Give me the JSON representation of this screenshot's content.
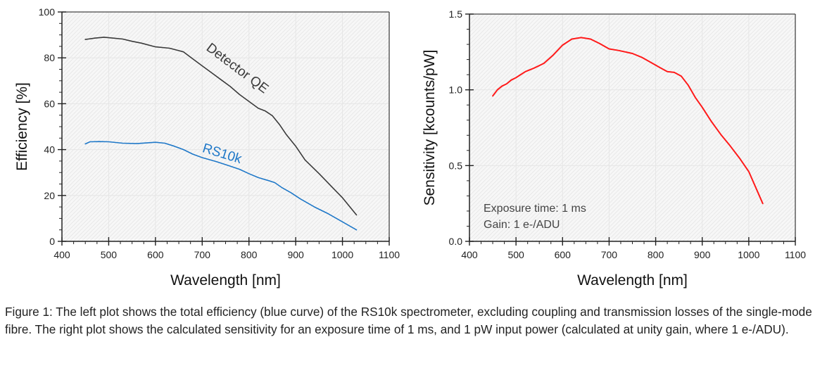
{
  "chart_data": [
    {
      "type": "line",
      "title": "",
      "xlabel": "Wavelength [nm]",
      "ylabel": "Efficiency [%]",
      "xlim": [
        400,
        1100
      ],
      "ylim": [
        0,
        100
      ],
      "xticks": [
        400,
        500,
        600,
        700,
        800,
        900,
        1000,
        1100
      ],
      "yticks": [
        0,
        20,
        40,
        60,
        80,
        100
      ],
      "x_minor_step": 25,
      "y_minor_step": 5,
      "grid": true,
      "legend": "none",
      "series": [
        {
          "name": "Detector QE",
          "color": "#3a3a3a",
          "x": [
            450,
            470,
            490,
            510,
            530,
            550,
            570,
            600,
            630,
            660,
            680,
            700,
            720,
            740,
            760,
            780,
            800,
            820,
            835,
            850,
            865,
            880,
            900,
            920,
            950,
            980,
            1000,
            1030
          ],
          "y": [
            88,
            88.6,
            89,
            88.6,
            88.2,
            87.2,
            86.4,
            84.8,
            84.2,
            82.6,
            79.5,
            76.5,
            73.5,
            70.5,
            67.5,
            64,
            61,
            58,
            56.8,
            54.8,
            51,
            46.5,
            41.5,
            35.5,
            29.5,
            23.2,
            19,
            11.5
          ]
        },
        {
          "name": "RS10k",
          "color": "#1f78c8",
          "x": [
            450,
            460,
            480,
            500,
            530,
            560,
            600,
            620,
            640,
            660,
            680,
            700,
            730,
            760,
            780,
            800,
            820,
            840,
            855,
            870,
            890,
            910,
            940,
            970,
            1000,
            1030
          ],
          "y": [
            42.5,
            43.4,
            43.5,
            43.4,
            42.8,
            42.6,
            43.2,
            42.8,
            41.5,
            40,
            38,
            36.5,
            34.8,
            32.8,
            31.4,
            29.5,
            27.8,
            26.6,
            25.6,
            23.5,
            21.2,
            18.5,
            15,
            12,
            8.5,
            5
          ]
        }
      ],
      "annotations": [
        {
          "text": "Detector QE",
          "x": 770,
          "y": 74,
          "angle": -37,
          "color": "#3a3a3a"
        },
        {
          "text": "RS10k",
          "x": 740,
          "y": 36.5,
          "angle": 17,
          "color": "#1f78c8"
        }
      ]
    },
    {
      "type": "line",
      "title": "",
      "xlabel": "Wavelength [nm]",
      "ylabel": "Sensitivity [kcounts/pW]",
      "xlim": [
        400,
        1100
      ],
      "ylim": [
        0.0,
        1.5
      ],
      "xticks": [
        400,
        500,
        600,
        700,
        800,
        900,
        1000,
        1100
      ],
      "yticks": [
        0.0,
        0.5,
        1.0,
        1.5
      ],
      "x_minor_step": 25,
      "y_minor_step": 0.1,
      "grid": true,
      "legend": "none",
      "series": [
        {
          "name": "Sensitivity",
          "color": "#ff1a1a",
          "x": [
            450,
            455,
            460,
            470,
            480,
            490,
            500,
            520,
            540,
            560,
            580,
            600,
            620,
            640,
            660,
            680,
            700,
            720,
            750,
            770,
            790,
            810,
            825,
            840,
            855,
            870,
            885,
            900,
            920,
            940,
            960,
            980,
            1000,
            1030
          ],
          "y": [
            0.96,
            0.98,
            1.0,
            1.025,
            1.04,
            1.065,
            1.08,
            1.12,
            1.145,
            1.175,
            1.23,
            1.295,
            1.335,
            1.345,
            1.335,
            1.305,
            1.27,
            1.26,
            1.24,
            1.215,
            1.18,
            1.145,
            1.12,
            1.115,
            1.09,
            1.03,
            0.95,
            0.885,
            0.79,
            0.705,
            0.63,
            0.55,
            0.46,
            0.25
          ]
        }
      ],
      "info_text": [
        "Exposure time: 1 ms",
        "Gain: 1 e-/ADU"
      ]
    }
  ],
  "caption": "Figure 1: The left plot shows the total efficiency (blue curve) of the RS10k spectrometer, excluding coupling and transmission losses of the single-mode fibre. The right plot shows the calculated sensitivity for an exposure time of 1 ms, and 1 pW input power (calculated at unity gain, where 1 e-/ADU)."
}
